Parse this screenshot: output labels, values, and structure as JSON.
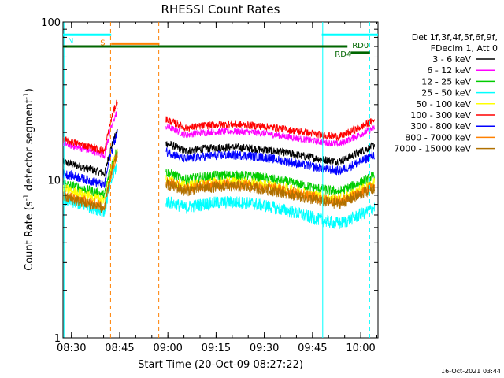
{
  "chart_data": {
    "type": "line",
    "title": "RHESSI Count Rates",
    "xlabel": "Start Time (20-Oct-09 08:27:22)",
    "ylabel_main": "Count Rate (s",
    "ylabel_sup1": "-1",
    "ylabel_mid": " detector segment",
    "ylabel_sup2": "-1",
    "ylabel_end": ")",
    "y_scale": "log",
    "ylim": [
      1,
      100
    ],
    "xlim_minutes": [
      0,
      98
    ],
    "x_ticks": [
      {
        "label": "08:30",
        "t": 2.63
      },
      {
        "label": "08:45",
        "t": 17.63
      },
      {
        "label": "09:00",
        "t": 32.63
      },
      {
        "label": "09:15",
        "t": 47.63
      },
      {
        "label": "09:30",
        "t": 62.63
      },
      {
        "label": "09:45",
        "t": 77.63
      },
      {
        "label": "10:00",
        "t": 92.63
      }
    ],
    "y_ticks": [
      {
        "label": "1",
        "v": 1
      },
      {
        "label": "10",
        "v": 10
      },
      {
        "label": "100",
        "v": 100
      }
    ],
    "legend_header": [
      "Det 1f,3f,4f,5f,6f,9f,",
      "FDecim 1, Att 0"
    ],
    "series": [
      {
        "name": "3 - 6 keV",
        "color": "#000000",
        "pre": 13,
        "base": 14.5,
        "amp": 2.6,
        "noise": 0.06
      },
      {
        "name": "6 - 12 keV",
        "color": "#ff00ff",
        "pre": 17,
        "base": 18.5,
        "amp": 3.0,
        "noise": 0.05
      },
      {
        "name": "12 - 25 keV",
        "color": "#00cc00",
        "pre": 9.5,
        "base": 9.5,
        "amp": 2.0,
        "noise": 0.07
      },
      {
        "name": "25 - 50 keV",
        "color": "#00ffff",
        "pre": 7.5,
        "base": 6.2,
        "amp": 1.7,
        "noise": 0.09
      },
      {
        "name": "50 - 100 keV",
        "color": "#ffff00",
        "pre": 8.8,
        "base": 8.6,
        "amp": 1.9,
        "noise": 0.07
      },
      {
        "name": "100 - 300 keV",
        "color": "#ff0000",
        "pre": 18,
        "base": 20.5,
        "amp": 3.2,
        "noise": 0.05
      },
      {
        "name": "300 - 800 keV",
        "color": "#0000ff",
        "pre": 11,
        "base": 12.8,
        "amp": 2.6,
        "noise": 0.06
      },
      {
        "name": "800 - 7000 keV",
        "color": "#ff8000",
        "pre": 8,
        "base": 8.3,
        "amp": 1.9,
        "noise": 0.07
      },
      {
        "name": "7000 - 15000 keV",
        "color": "#b07000",
        "pre": 7.8,
        "base": 8.0,
        "amp": 1.8,
        "noise": 0.07
      }
    ],
    "data_gap_minutes": [
      17.0,
      32.0
    ],
    "flags": [
      {
        "label": "S",
        "color": "#ff8000",
        "start": 15.0,
        "end": 30.0,
        "level": 73
      },
      {
        "label": "N",
        "color": "#00ffff",
        "start": 0,
        "end": 15.0,
        "level": 83
      },
      {
        "label": "N",
        "color": "#00ffff",
        "start": 80.5,
        "end": 98,
        "level": 83
      },
      {
        "label": "RD0",
        "color": "#006600",
        "start": 0,
        "end": 88.5,
        "level": 70
      },
      {
        "label": "RD4",
        "color": "#006600",
        "start": 89.5,
        "end": 95.5,
        "level": 64
      }
    ],
    "vlines": [
      {
        "t": 0.3,
        "color": "#00ffff",
        "style": "solid"
      },
      {
        "t": 14.8,
        "color": "#ff8000",
        "style": "dashed"
      },
      {
        "t": 29.8,
        "color": "#ff8000",
        "style": "dashed"
      },
      {
        "t": 80.8,
        "color": "#00ffff",
        "style": "solid"
      },
      {
        "t": 95.4,
        "color": "#00ffff",
        "style": "dashed"
      }
    ],
    "footer_date": "16-Oct-2021 03:44"
  }
}
